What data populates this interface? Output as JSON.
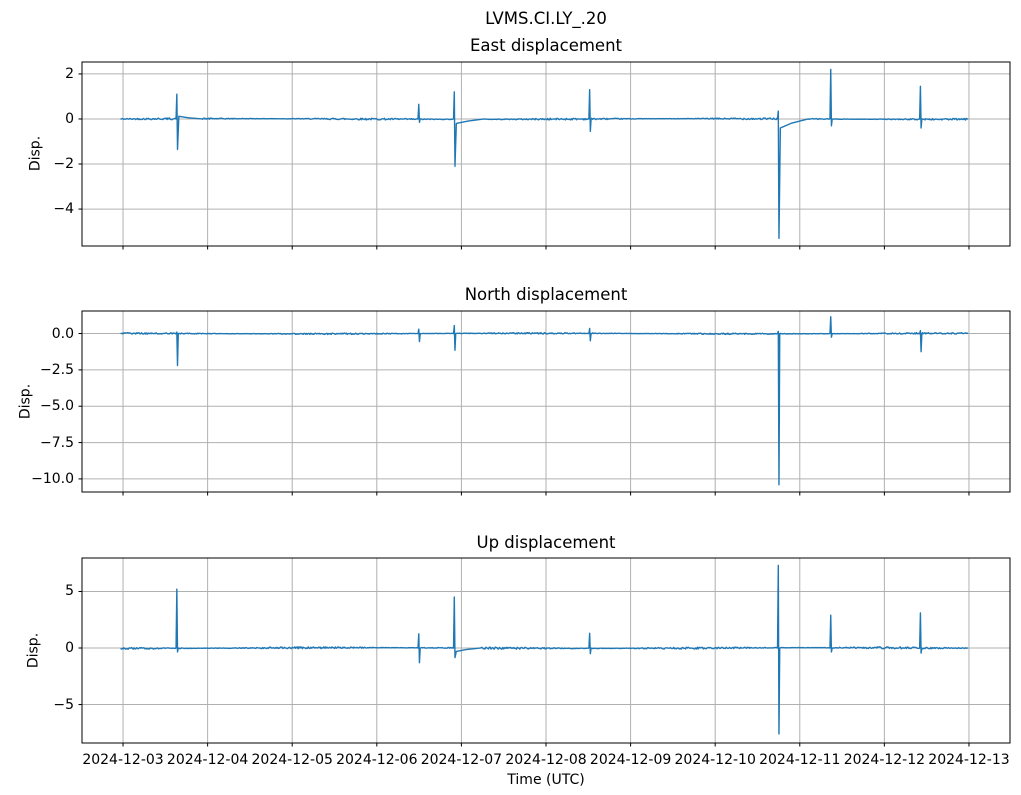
{
  "figure": {
    "title": "LVMS.CI.LY_.20",
    "xlabel": "Time (UTC)",
    "background_color": "#ffffff",
    "line_color": "#1f77b4",
    "grid_color": "#b0b0b0",
    "spine_color": "#000000",
    "text_color": "#000000"
  },
  "x_axis": {
    "tick_labels": [
      "2024-12-03",
      "2024-12-04",
      "2024-12-05",
      "2024-12-06",
      "2024-12-07",
      "2024-12-08",
      "2024-12-09",
      "2024-12-10",
      "2024-12-11",
      "2024-12-12",
      "2024-12-13"
    ],
    "tick_days": [
      0,
      1,
      2,
      3,
      4,
      5,
      6,
      7,
      8,
      9,
      10
    ],
    "xlim_days": [
      -0.485,
      10.485
    ],
    "data_start_day": -0.03,
    "data_end_day": 9.99,
    "grid": true
  },
  "chart_data": [
    {
      "type": "line",
      "title": "East displacement",
      "ylabel": "Disp.",
      "ylim": [
        -5.64,
        2.53
      ],
      "yticks": [
        {
          "value": 2,
          "label": "2"
        },
        {
          "value": 0,
          "label": "0"
        },
        {
          "value": -2,
          "label": "−2"
        },
        {
          "value": -4,
          "label": "−4"
        }
      ],
      "baseline": 0,
      "noise_amp": 0.04,
      "spikes": [
        {
          "day": 0.64,
          "up": 1.1,
          "down": -1.35,
          "tail_val": 0.12,
          "tail_days": 0.3
        },
        {
          "day": 3.5,
          "up": 0.65,
          "down": -0.15
        },
        {
          "day": 3.92,
          "up": 1.2,
          "down": -2.1,
          "tail_val": -0.2,
          "tail_days": 0.35
        },
        {
          "day": 5.52,
          "up": 1.3,
          "down": -0.55
        },
        {
          "day": 7.75,
          "up": 0.35,
          "down": -5.3,
          "tail_val": -0.4,
          "tail_days": 0.35
        },
        {
          "day": 8.37,
          "up": 2.2,
          "down": -0.3
        },
        {
          "day": 9.43,
          "up": 1.45,
          "down": -0.4
        }
      ]
    },
    {
      "type": "line",
      "title": "North displacement",
      "ylabel": "Disp.",
      "ylim": [
        -10.9,
        1.55
      ],
      "yticks": [
        {
          "value": 0,
          "label": "0.0"
        },
        {
          "value": -2.5,
          "label": "−2.5"
        },
        {
          "value": -5,
          "label": "−5.0"
        },
        {
          "value": -7.5,
          "label": "−7.5"
        },
        {
          "value": -10,
          "label": "−10.0"
        }
      ],
      "baseline": 0,
      "noise_amp": 0.05,
      "spikes": [
        {
          "day": 0.64,
          "up": 0.1,
          "down": -2.2
        },
        {
          "day": 3.5,
          "up": 0.3,
          "down": -0.55
        },
        {
          "day": 3.92,
          "up": 0.55,
          "down": -1.15
        },
        {
          "day": 5.52,
          "up": 0.35,
          "down": -0.5
        },
        {
          "day": 7.75,
          "up": 0.15,
          "down": -10.4
        },
        {
          "day": 8.37,
          "up": 1.15,
          "down": -0.25
        },
        {
          "day": 9.43,
          "up": 0.2,
          "down": -1.25
        }
      ]
    },
    {
      "type": "line",
      "title": "Up displacement",
      "ylabel": "Disp.",
      "ylim": [
        -8.4,
        7.96
      ],
      "yticks": [
        {
          "value": 5,
          "label": "5"
        },
        {
          "value": 0,
          "label": "0"
        },
        {
          "value": -5,
          "label": "−5"
        }
      ],
      "baseline": 0,
      "noise_amp": 0.09,
      "spikes": [
        {
          "day": 0.64,
          "up": 5.2,
          "down": -0.35
        },
        {
          "day": 3.5,
          "up": 1.25,
          "down": -1.3
        },
        {
          "day": 3.92,
          "up": 4.5,
          "down": -0.85,
          "tail_val": -0.3,
          "tail_days": 0.3
        },
        {
          "day": 5.52,
          "up": 1.3,
          "down": -0.5
        },
        {
          "day": 7.75,
          "up": 7.3,
          "down": -7.6
        },
        {
          "day": 8.37,
          "up": 2.9,
          "down": -0.35
        },
        {
          "day": 9.43,
          "up": 3.1,
          "down": -0.45
        }
      ]
    }
  ]
}
